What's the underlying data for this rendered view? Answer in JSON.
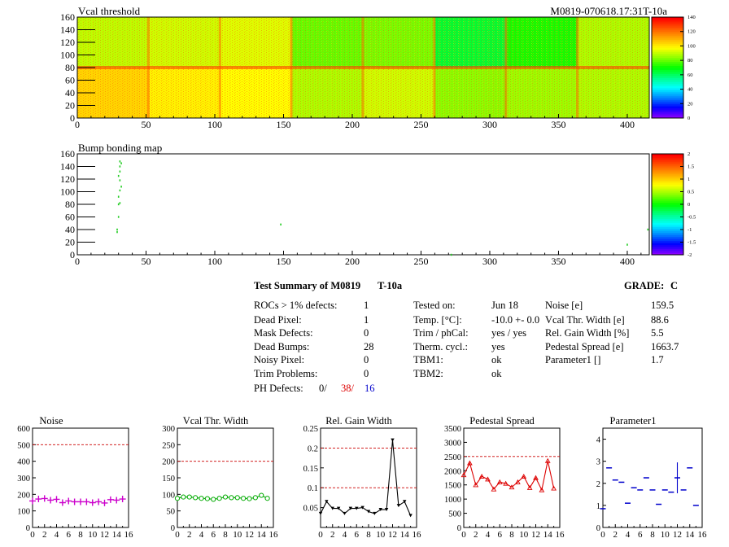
{
  "maps": [
    {
      "title": "Vcal threshold",
      "corner_label": "M0819-070618.17:31T-10a",
      "x_ticks": [
        "0",
        "50",
        "100",
        "150",
        "200",
        "250",
        "300",
        "350",
        "400"
      ],
      "y_ticks": [
        "0",
        "20",
        "40",
        "60",
        "80",
        "100",
        "120",
        "140",
        "160"
      ],
      "z_ticks": [
        "0",
        "20",
        "40",
        "60",
        "80",
        "100",
        "120",
        "140"
      ]
    },
    {
      "title": "Bump bonding map",
      "x_ticks": [
        "0",
        "50",
        "100",
        "150",
        "200",
        "250",
        "300",
        "350",
        "400"
      ],
      "y_ticks": [
        "0",
        "20",
        "40",
        "60",
        "80",
        "100",
        "120",
        "140",
        "160"
      ],
      "z_ticks": [
        "-2",
        "-1.5",
        "-1",
        "-0.5",
        "0",
        "0.5",
        "1",
        "1.5",
        "2"
      ]
    }
  ],
  "summary": {
    "title": "Test Summary of M0819",
    "tag": "T-10a",
    "grade_label": "GRADE:",
    "grade": "C",
    "col1": [
      {
        "label": "ROCs > 1% defects:",
        "value": "1"
      },
      {
        "label": "Dead Pixel:",
        "value": "1"
      },
      {
        "label": "Mask Defects:",
        "value": "0"
      },
      {
        "label": "Dead Bumps:",
        "value": "28"
      },
      {
        "label": "Noisy Pixel:",
        "value": "0"
      },
      {
        "label": "Trim Problems:",
        "value": "0"
      }
    ],
    "ph_label": "PH Defects:",
    "ph_values": [
      "0/",
      "38/",
      "16"
    ],
    "col2": [
      {
        "label": "Tested on:",
        "value": "Jun 18"
      },
      {
        "label": "Temp. [°C]:",
        "value": "-10.0 +- 0.0"
      },
      {
        "label": "Trim / phCal:",
        "value": "yes / yes"
      },
      {
        "label": "Therm. cycl.:",
        "value": "yes"
      },
      {
        "label": "TBM1:",
        "value": "ok"
      },
      {
        "label": "TBM2:",
        "value": "ok"
      }
    ],
    "col3": [
      {
        "label": "Noise [e]",
        "value": "159.5"
      },
      {
        "label": "Vcal Thr. Width [e]",
        "value": "88.6"
      },
      {
        "label": "Rel. Gain Width [%]",
        "value": "5.5"
      },
      {
        "label": "Pedestal Spread [e]",
        "value": "1663.7"
      },
      {
        "label": "Parameter1 []",
        "value": "1.7"
      }
    ]
  },
  "chart_data": [
    {
      "type": "heatmap",
      "title": "Vcal threshold",
      "xlim": [
        0,
        416
      ],
      "ylim": [
        0,
        160
      ],
      "zlim": [
        0,
        140
      ],
      "note_blocks": "8 ROC columns x 2 ROC rows, mean threshold per block",
      "block_means_top": [
        90,
        92,
        94,
        80,
        82,
        65,
        72,
        88
      ],
      "block_means_bottom": [
        105,
        100,
        98,
        88,
        92,
        84,
        86,
        88
      ],
      "colors": {
        "low": "#ffff00",
        "high": "#ff0000",
        "mid": "#88ff00"
      }
    },
    {
      "type": "heatmap",
      "title": "Bump bonding map",
      "xlim": [
        0,
        416
      ],
      "ylim": [
        0,
        160
      ],
      "zlim": [
        -2,
        2
      ],
      "points": [
        [
          31,
          148
        ],
        [
          32,
          145
        ],
        [
          31,
          140
        ],
        [
          31,
          132
        ],
        [
          30,
          125
        ],
        [
          31,
          118
        ],
        [
          32,
          108
        ],
        [
          31,
          102
        ],
        [
          30,
          92
        ],
        [
          31,
          82
        ],
        [
          30,
          80
        ],
        [
          30,
          60
        ],
        [
          29,
          40
        ],
        [
          29,
          36
        ],
        [
          148,
          48
        ],
        [
          272,
          0
        ],
        [
          400,
          16
        ],
        [
          415,
          40
        ]
      ]
    },
    {
      "type": "scatter",
      "title": "Noise",
      "xlim": [
        0,
        16
      ],
      "ylim": [
        0,
        600
      ],
      "ref": 500,
      "color": "#cc00cc",
      "marker": "cross",
      "x": [
        0,
        1,
        2,
        3,
        4,
        5,
        6,
        7,
        8,
        9,
        10,
        11,
        12,
        13,
        14,
        15
      ],
      "y": [
        160,
        172,
        175,
        165,
        170,
        150,
        160,
        155,
        155,
        155,
        150,
        155,
        148,
        168,
        165,
        172
      ]
    },
    {
      "type": "line",
      "title": "Vcal Thr. Width",
      "xlim": [
        0,
        16
      ],
      "ylim": [
        0,
        300
      ],
      "ref": 200,
      "color": "#00aa00",
      "marker": "circle",
      "x": [
        0,
        1,
        2,
        3,
        4,
        5,
        6,
        7,
        8,
        9,
        10,
        11,
        12,
        13,
        14,
        15
      ],
      "y": [
        88,
        92,
        92,
        90,
        88,
        87,
        85,
        88,
        92,
        90,
        90,
        88,
        87,
        90,
        97,
        88
      ]
    },
    {
      "type": "line",
      "title": "Rel. Gain Width",
      "xlim": [
        0,
        16
      ],
      "ylim": [
        0,
        0.25
      ],
      "refs": [
        0.2,
        0.1
      ],
      "color": "#000000",
      "marker": "triangle-down",
      "x": [
        0,
        1,
        2,
        3,
        4,
        5,
        6,
        7,
        8,
        9,
        10,
        11,
        12,
        13,
        14,
        15
      ],
      "y": [
        0.035,
        0.065,
        0.048,
        0.048,
        0.035,
        0.048,
        0.048,
        0.05,
        0.04,
        0.035,
        0.045,
        0.045,
        0.22,
        0.055,
        0.065,
        0.03
      ]
    },
    {
      "type": "line",
      "title": "Pedestal Spread",
      "xlim": [
        0,
        16
      ],
      "ylim": [
        0,
        3500
      ],
      "ref": 2500,
      "color": "#dd0000",
      "marker": "triangle-up",
      "x": [
        0,
        1,
        2,
        3,
        4,
        5,
        6,
        7,
        8,
        9,
        10,
        11,
        12,
        13,
        14,
        15
      ],
      "y": [
        1850,
        2270,
        1500,
        1800,
        1700,
        1350,
        1600,
        1550,
        1420,
        1600,
        1800,
        1400,
        1750,
        1320,
        2350,
        1380
      ]
    },
    {
      "type": "scatter",
      "title": "Parameter1",
      "xlim": [
        0,
        16
      ],
      "ylim": [
        0,
        4.5
      ],
      "color": "#0000cc",
      "marker": "hbar",
      "x": [
        0,
        1,
        2,
        3,
        4,
        5,
        6,
        7,
        8,
        9,
        10,
        11,
        12,
        13,
        14,
        15
      ],
      "y": [
        0.85,
        2.7,
        2.15,
        2.05,
        1.1,
        1.8,
        1.7,
        2.25,
        1.7,
        1.05,
        1.7,
        1.6,
        2.25,
        1.7,
        2.7,
        1.0
      ],
      "yerr": [
        0,
        0,
        0,
        0,
        0,
        0,
        0,
        0,
        0,
        0,
        0,
        0,
        0.7,
        0,
        0,
        0
      ]
    }
  ],
  "small_x_ticks": [
    "0",
    "2",
    "4",
    "6",
    "8",
    "10",
    "12",
    "14",
    "16"
  ],
  "small_panels": [
    {
      "y_ticks": [
        "0",
        "100",
        "200",
        "300",
        "400",
        "500",
        "600"
      ]
    },
    {
      "y_ticks": [
        "0",
        "50",
        "100",
        "150",
        "200",
        "250",
        "300"
      ]
    },
    {
      "y_ticks": [
        "0.05",
        "0.1",
        "0.15",
        "0.2",
        "0.25"
      ]
    },
    {
      "y_ticks": [
        "0",
        "500",
        "1000",
        "1500",
        "2000",
        "2500",
        "3000",
        "3500"
      ]
    },
    {
      "y_ticks": [
        "0",
        "1",
        "2",
        "3",
        "4"
      ]
    }
  ]
}
